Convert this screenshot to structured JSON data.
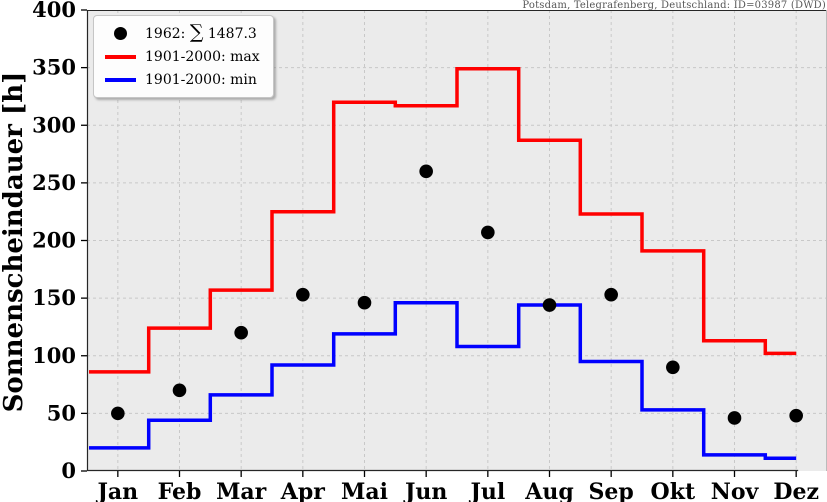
{
  "station_header": "Potsdam, Telegrafenberg, Deutschland: ID=03987 (DWD)",
  "ylabel": "Sonnenscheindauer [h]",
  "legend": {
    "year_prefix": "1962:",
    "sum_symbol": "∑",
    "sum_value": "1487.3",
    "max_label": "1901-2000: max",
    "min_label": "1901-2000: min"
  },
  "colors": {
    "max": "#ff0000",
    "min": "#0000ff",
    "dots": "#000000",
    "plot_bg": "#ebebeb",
    "grid": "#c8c8c8",
    "spine": "#262626"
  },
  "chart_data": {
    "type": "line",
    "subtype": "step lines (monthly min/max band) with scatter overlay for year 1962",
    "categories": [
      "Jan",
      "Feb",
      "Mar",
      "Apr",
      "Mai",
      "Jun",
      "Jul",
      "Aug",
      "Sep",
      "Okt",
      "Nov",
      "Dez"
    ],
    "series": [
      {
        "name": "1962",
        "style": "scatter",
        "color": "#000000",
        "values": [
          50,
          70,
          120,
          153,
          146,
          260,
          207,
          144,
          153,
          90,
          46,
          48
        ],
        "sum": 1487.3
      },
      {
        "name": "1901-2000: max",
        "style": "step",
        "color": "#ff0000",
        "values": [
          86,
          124,
          157,
          225,
          320,
          317,
          349,
          287,
          223,
          191,
          113,
          102
        ]
      },
      {
        "name": "1901-2000: min",
        "style": "step",
        "color": "#0000ff",
        "values": [
          20,
          44,
          66,
          92,
          119,
          146,
          108,
          144,
          95,
          53,
          14,
          11
        ]
      }
    ],
    "title": "",
    "xlabel": "",
    "ylabel": "Sonnenscheindauer [h]",
    "ylim": [
      0,
      400
    ],
    "ytick_step": 50,
    "grid": true,
    "legend_position": "upper left",
    "annotation": "Potsdam, Telegrafenberg, Deutschland: ID=03987 (DWD)"
  }
}
